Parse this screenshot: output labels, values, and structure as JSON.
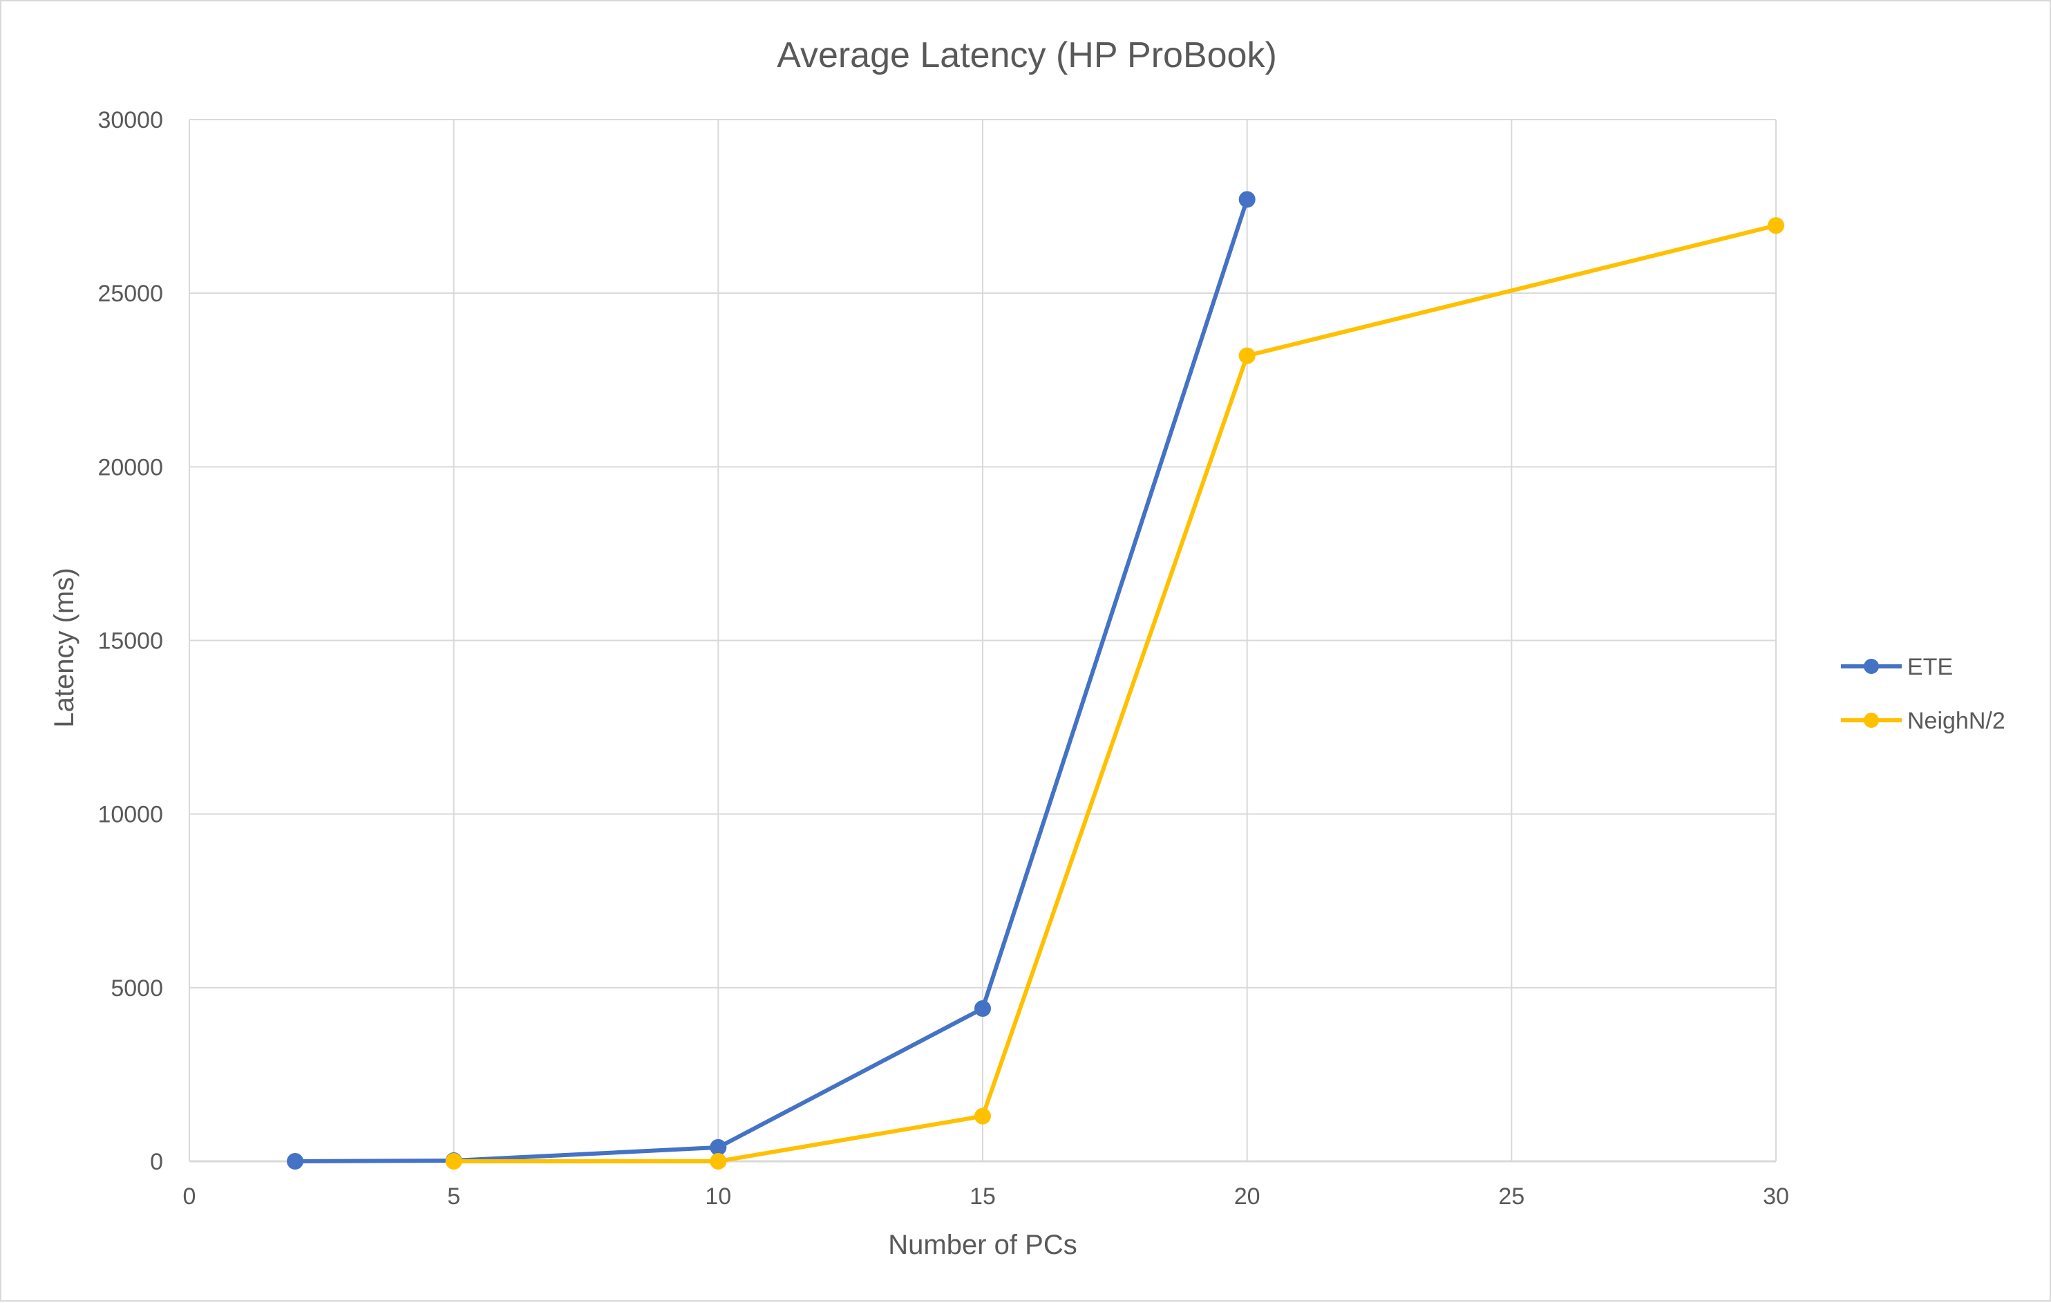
{
  "chart_data": {
    "type": "line",
    "title": "Average Latency (HP ProBook)",
    "xlabel": "Number of PCs",
    "ylabel": "Latency (ms)",
    "xlim": [
      0,
      30
    ],
    "ylim": [
      0,
      30000
    ],
    "x_ticks": [
      "0",
      "5",
      "10",
      "15",
      "20",
      "25",
      "30"
    ],
    "y_ticks": [
      "0",
      "5000",
      "10000",
      "15000",
      "20000",
      "25000",
      "30000"
    ],
    "grid": true,
    "legend_position": "right",
    "series": [
      {
        "name": "ETE",
        "color": "#4472c4",
        "points": [
          {
            "x": 2,
            "y": 0
          },
          {
            "x": 5,
            "y": 20
          },
          {
            "x": 10,
            "y": 400
          },
          {
            "x": 15,
            "y": 4400
          },
          {
            "x": 20,
            "y": 27700
          }
        ]
      },
      {
        "name": "NeighN/2",
        "color": "#ffc000",
        "points": [
          {
            "x": 5,
            "y": 0
          },
          {
            "x": 10,
            "y": 0
          },
          {
            "x": 15,
            "y": 1300
          },
          {
            "x": 20,
            "y": 23200
          },
          {
            "x": 30,
            "y": 26950
          }
        ]
      }
    ]
  }
}
